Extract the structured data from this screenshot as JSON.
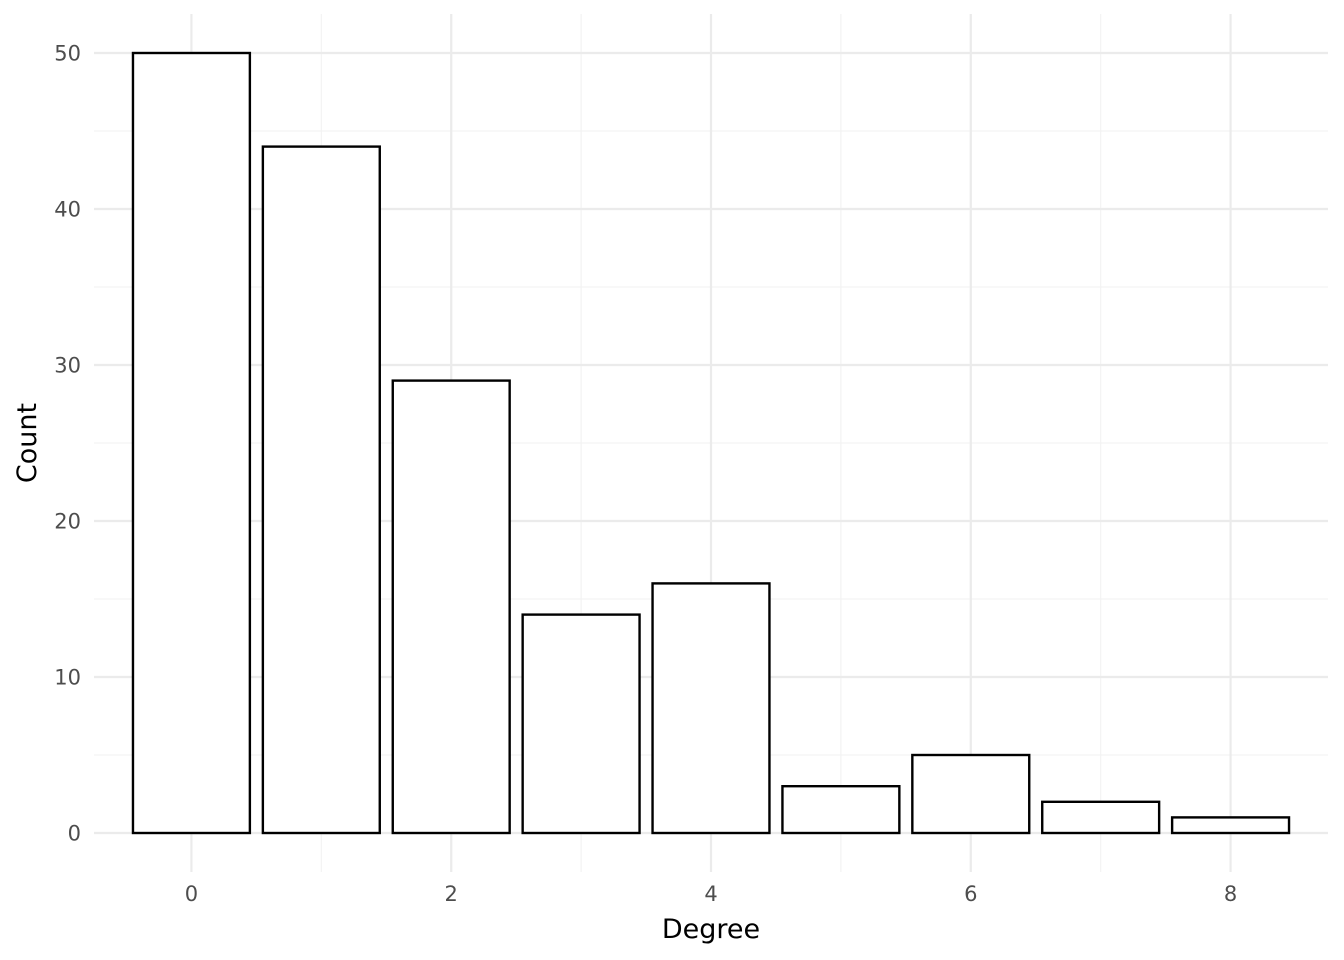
{
  "chart_data": {
    "type": "bar",
    "x": [
      0,
      1,
      2,
      3,
      4,
      5,
      6,
      7,
      8
    ],
    "values": [
      50,
      44,
      29,
      14,
      16,
      3,
      5,
      2,
      1
    ],
    "title": "",
    "xlabel": "Degree",
    "ylabel": "Count",
    "xlim": [
      -0.75,
      8.75
    ],
    "ylim": [
      -2.5,
      52.5
    ],
    "x_ticks": [
      0,
      2,
      4,
      6,
      8
    ],
    "y_ticks": [
      0,
      10,
      20,
      30,
      40,
      50
    ],
    "grid": true,
    "legend": "none",
    "colors": {
      "bar_fill": "#ffffff",
      "bar_stroke": "#000000",
      "grid": "#ebebeb"
    }
  }
}
